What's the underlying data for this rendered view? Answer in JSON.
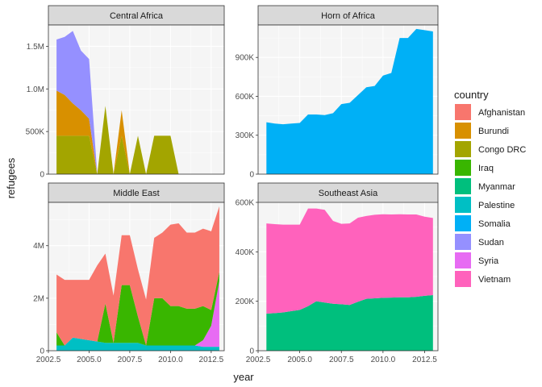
{
  "chart_data": {
    "type": "area",
    "stacked": true,
    "facet_by": "region",
    "xlabel": "year",
    "ylabel": "refugees",
    "x": [
      2003,
      2003.5,
      2004,
      2004.5,
      2005,
      2005.5,
      2006,
      2006.5,
      2007,
      2007.5,
      2008,
      2008.5,
      2009,
      2009.5,
      2010,
      2010.5,
      2011,
      2011.5,
      2012,
      2012.5,
      2013
    ],
    "legend": {
      "title": "country",
      "position": "right",
      "entries": [
        {
          "name": "Afghanistan",
          "color": "#F8766D"
        },
        {
          "name": "Burundi",
          "color": "#D89000"
        },
        {
          "name": "Congo DRC",
          "color": "#A3A500"
        },
        {
          "name": "Iraq",
          "color": "#39B600"
        },
        {
          "name": "Myanmar",
          "color": "#00BF7D"
        },
        {
          "name": "Palestine",
          "color": "#00BFC4"
        },
        {
          "name": "Somalia",
          "color": "#00B0F6"
        },
        {
          "name": "Sudan",
          "color": "#9590FF"
        },
        {
          "name": "Syria",
          "color": "#E76BF3"
        },
        {
          "name": "Vietnam",
          "color": "#FF62BC"
        }
      ]
    },
    "panels": [
      {
        "title": "Central Africa",
        "ylim": [
          0,
          1750000
        ],
        "yticks": [
          0,
          500000,
          1000000,
          1500000
        ],
        "ytick_labels": [
          "0",
          "500K",
          "1.0M",
          "1.5M"
        ],
        "series": [
          {
            "name": "Congo DRC",
            "values": [
              450000,
              450000,
              450000,
              450000,
              450000,
              0,
              800000,
              0,
              450000,
              0,
              450000,
              0,
              450000,
              450000,
              450000,
              0,
              0,
              0,
              0,
              0,
              0
            ]
          },
          {
            "name": "Burundi",
            "values": [
              530000,
              480000,
              380000,
              300000,
              200000,
              0,
              0,
              0,
              300000,
              0,
              0,
              0,
              0,
              0,
              0,
              0,
              0,
              0,
              0,
              0,
              0
            ]
          },
          {
            "name": "Sudan",
            "values": [
              600000,
              680000,
              850000,
              700000,
              700000,
              0,
              0,
              0,
              0,
              0,
              0,
              0,
              0,
              0,
              0,
              0,
              0,
              0,
              0,
              0,
              0
            ]
          }
        ]
      },
      {
        "title": "Horn of Africa",
        "ylim": [
          0,
          1150000
        ],
        "yticks": [
          0,
          300000,
          600000,
          900000
        ],
        "ytick_labels": [
          "0",
          "300K",
          "600K",
          "900K"
        ],
        "series": [
          {
            "name": "Somalia",
            "values": [
              400000,
              390000,
              385000,
              390000,
              395000,
              460000,
              460000,
              455000,
              470000,
              540000,
              550000,
              610000,
              670000,
              680000,
              760000,
              780000,
              1050000,
              1050000,
              1120000,
              1110000,
              1100000
            ]
          }
        ]
      },
      {
        "title": "Middle East",
        "ylim": [
          0,
          5650000
        ],
        "yticks": [
          0,
          2000000,
          4000000
        ],
        "ytick_labels": [
          "0",
          "2M",
          "4M"
        ],
        "series": [
          {
            "name": "Palestine",
            "values": [
              200000,
              200000,
              500000,
              450000,
              400000,
              350000,
              300000,
              300000,
              300000,
              300000,
              300000,
              200000,
              200000,
              200000,
              200000,
              200000,
              200000,
              200000,
              150000,
              150000,
              150000
            ]
          },
          {
            "name": "Syria",
            "values": [
              0,
              0,
              0,
              0,
              0,
              0,
              0,
              0,
              0,
              0,
              0,
              0,
              0,
              0,
              0,
              0,
              0,
              0,
              250000,
              800000,
              2500000
            ]
          },
          {
            "name": "Iraq",
            "values": [
              500000,
              0,
              0,
              0,
              0,
              0,
              1500000,
              0,
              2200000,
              2200000,
              1000000,
              0,
              1800000,
              1800000,
              1500000,
              1500000,
              1400000,
              1400000,
              1300000,
              600000,
              350000
            ]
          },
          {
            "name": "Afghanistan",
            "values": [
              2200000,
              2500000,
              2200000,
              2250000,
              2300000,
              2900000,
              1900000,
              1800000,
              1900000,
              1900000,
              1800000,
              1750000,
              2300000,
              2500000,
              3100000,
              3150000,
              2900000,
              2900000,
              2950000,
              3000000,
              2500000
            ]
          }
        ]
      },
      {
        "title": "Southeast Asia",
        "ylim": [
          0,
          600000
        ],
        "yticks": [
          0,
          200000,
          400000,
          600000
        ],
        "ytick_labels": [
          "0",
          "200K",
          "400K",
          "600K"
        ],
        "series": [
          {
            "name": "Myanmar",
            "values": [
              150000,
              152000,
              155000,
              160000,
              165000,
              180000,
              200000,
              195000,
              190000,
              188000,
              185000,
              198000,
              210000,
              212000,
              214000,
              215000,
              216000,
              216000,
              218000,
              222000,
              225000
            ]
          },
          {
            "name": "Vietnam",
            "values": [
              365000,
              360000,
              355000,
              350000,
              345000,
              395000,
              375000,
              375000,
              335000,
              325000,
              330000,
              340000,
              335000,
              338000,
              338000,
              336000,
              336000,
              335000,
              333000,
              320000,
              312000
            ]
          }
        ]
      }
    ],
    "x_ticks": [
      2002.5,
      2005,
      2007.5,
      2010,
      2012.5
    ],
    "x_tick_labels": [
      "2002.5",
      "2005.0",
      "2007.5",
      "2010.0",
      "2012.5"
    ],
    "grid": true
  }
}
